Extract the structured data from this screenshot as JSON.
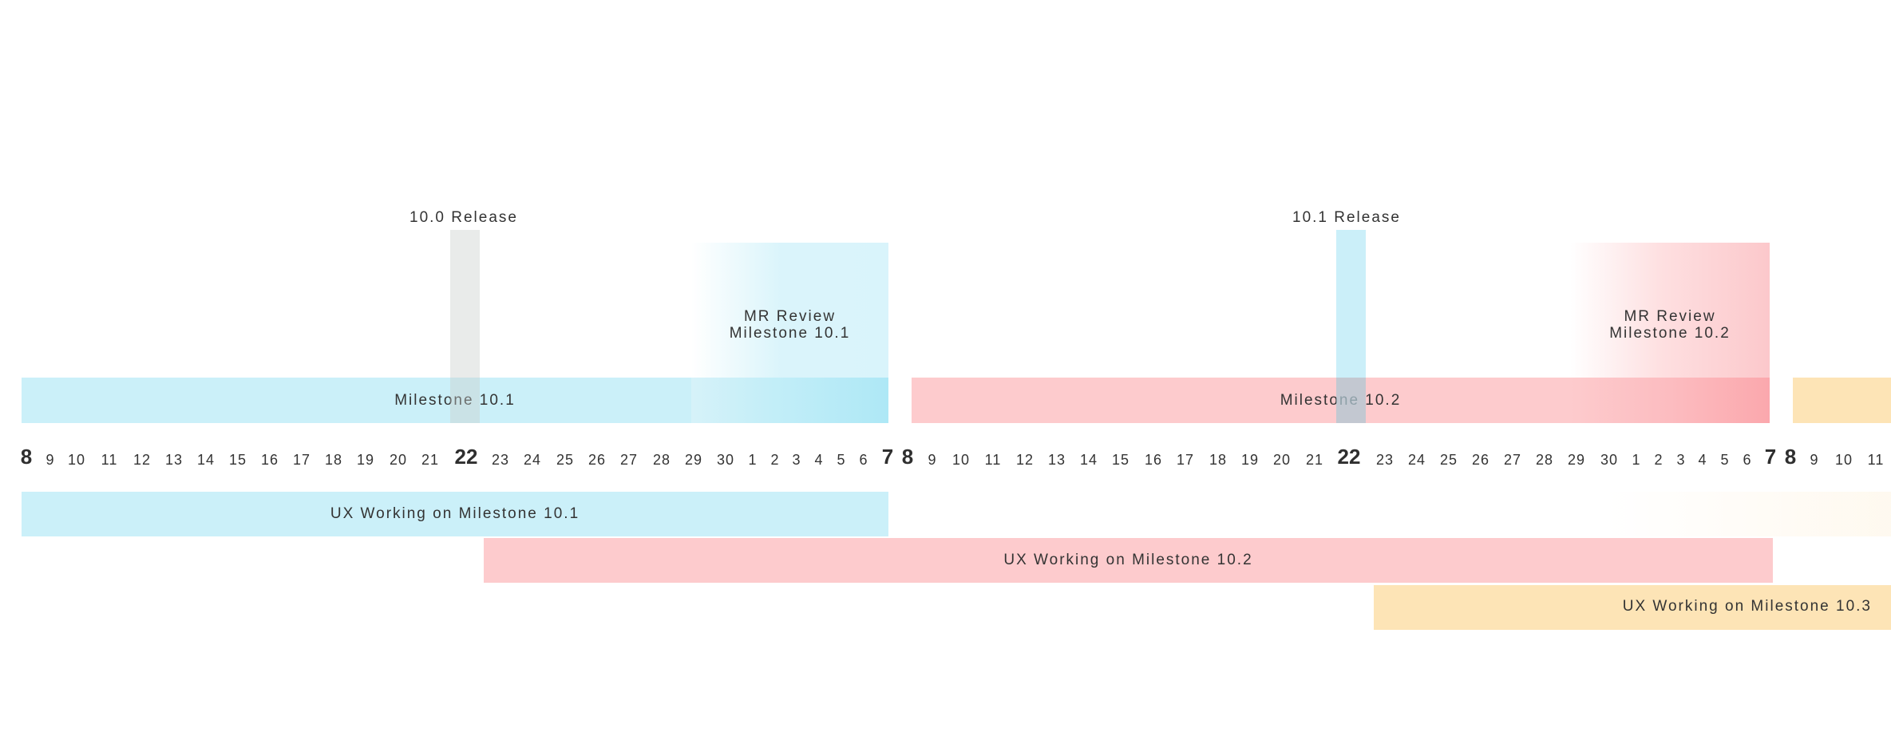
{
  "releases": [
    {
      "label": "10.0 Release"
    },
    {
      "label": "10.1  Release"
    }
  ],
  "mr_reviews": [
    {
      "line1": "MR Review",
      "line2": "Milestone 10.1"
    },
    {
      "line1": "MR Review",
      "line2": "Milestone 10.2"
    }
  ],
  "milestones": [
    {
      "label": "Milestone 10.1"
    },
    {
      "label": "Milestone 10.2"
    }
  ],
  "days": [
    {
      "text": "8",
      "bold": true
    },
    {
      "text": "9"
    },
    {
      "text": "10"
    },
    {
      "text": "11"
    },
    {
      "text": "12"
    },
    {
      "text": "13"
    },
    {
      "text": "14"
    },
    {
      "text": "15"
    },
    {
      "text": "16"
    },
    {
      "text": "17"
    },
    {
      "text": "18"
    },
    {
      "text": "19"
    },
    {
      "text": "20"
    },
    {
      "text": "21"
    },
    {
      "text": "22",
      "bold": true
    },
    {
      "text": "23"
    },
    {
      "text": "24"
    },
    {
      "text": "25"
    },
    {
      "text": "26"
    },
    {
      "text": "27"
    },
    {
      "text": "28"
    },
    {
      "text": "29"
    },
    {
      "text": "30"
    },
    {
      "text": "1"
    },
    {
      "text": "2"
    },
    {
      "text": "3"
    },
    {
      "text": "4"
    },
    {
      "text": "5"
    },
    {
      "text": "6"
    },
    {
      "text": "7",
      "bold": true
    },
    {
      "text": "8",
      "bold": true
    },
    {
      "text": "9"
    },
    {
      "text": "10"
    },
    {
      "text": "11"
    },
    {
      "text": "12"
    },
    {
      "text": "13"
    },
    {
      "text": "14"
    },
    {
      "text": "15"
    },
    {
      "text": "16"
    },
    {
      "text": "17"
    },
    {
      "text": "18"
    },
    {
      "text": "19"
    },
    {
      "text": "20"
    },
    {
      "text": "21"
    },
    {
      "text": "22",
      "bold": true
    },
    {
      "text": "23"
    },
    {
      "text": "24"
    },
    {
      "text": "25"
    },
    {
      "text": "26"
    },
    {
      "text": "27"
    },
    {
      "text": "28"
    },
    {
      "text": "29"
    },
    {
      "text": "30"
    },
    {
      "text": "1"
    },
    {
      "text": "2"
    },
    {
      "text": "3"
    },
    {
      "text": "4"
    },
    {
      "text": "5"
    },
    {
      "text": "6"
    },
    {
      "text": "7",
      "bold": true
    },
    {
      "text": "8",
      "bold": true
    },
    {
      "text": "9"
    },
    {
      "text": "10"
    },
    {
      "text": "11"
    }
  ],
  "ux_bars": [
    {
      "label": "UX Working on Milestone 10.1"
    },
    {
      "label": "UX Working on Milestone 10.2"
    },
    {
      "label": "UX Working on Milestone 10.3"
    }
  ],
  "colors": {
    "milestone_10_1": "#cbf0f9",
    "milestone_10_2": "#fdcbcd",
    "milestone_10_3": "#fde4b6"
  }
}
